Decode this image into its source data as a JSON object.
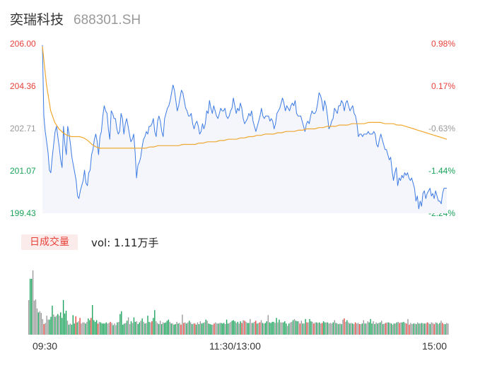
{
  "stock": {
    "name": "奕瑞科技",
    "code": "688301.SH"
  },
  "chart_data": [
    {
      "type": "line",
      "title": "",
      "yticks": [
        "206.00",
        "204.36",
        "202.71",
        "201.07",
        "199.43"
      ],
      "ylim": [
        199.43,
        206.0
      ],
      "pct_ticks": [
        "0.98%",
        "0.17%",
        "-0.63%",
        "-1.44%",
        "-2.24%"
      ],
      "x_labels": [
        "09:30",
        "11:30/13:00",
        "15:00"
      ],
      "grid": false,
      "series": [
        {
          "values": [
            205.95,
            203.2,
            202.6,
            202.2,
            201.8,
            201.1,
            201.0,
            201.6,
            202.1,
            202.6,
            202.8,
            202.4,
            202.0,
            201.5,
            201.2,
            202.8,
            202.1,
            201.7,
            202.8,
            202.5,
            202.1,
            201.6,
            201.3,
            201.0,
            200.7,
            200.1,
            200.0,
            200.3,
            200.5,
            200.7,
            201.1,
            200.6,
            200.5,
            201.0,
            201.1,
            201.7,
            201.9,
            202.3,
            202.5,
            202.2,
            201.7,
            202.4,
            202.6,
            203.2,
            203.6,
            203.4,
            203.3,
            202.7,
            202.3,
            203.4,
            203.3,
            203.1,
            203.1,
            202.7,
            202.5,
            202.6,
            203.3,
            203.1,
            202.5,
            202.9,
            203.1,
            202.8,
            202.5,
            202.2,
            202.3,
            202.5,
            201.8,
            200.8,
            201.3,
            201.4,
            201.6,
            202.0,
            202.3,
            202.4,
            202.6,
            202.5,
            202.8,
            202.8,
            202.9,
            203.1,
            202.6,
            202.4,
            203.0,
            203.2,
            203.0,
            202.6,
            202.4,
            203.1,
            203.3,
            203.5,
            203.6,
            203.8,
            204.1,
            204.4,
            204.2,
            203.8,
            203.4,
            203.6,
            203.9,
            204.2,
            204.1,
            203.8,
            203.5,
            203.4,
            203.2,
            203.2,
            203.3,
            202.9,
            202.7,
            202.9,
            203.0,
            202.8,
            202.5,
            202.6,
            202.9,
            202.7,
            202.9,
            203.4,
            203.3,
            203.8,
            203.5,
            203.3,
            203.6,
            203.4,
            203.2,
            203.1,
            203.3,
            203.5,
            203.4,
            203.4,
            203.5,
            203.2,
            203.1,
            203.2,
            203.4,
            203.5,
            203.9,
            203.6,
            203.3,
            203.5,
            203.4,
            203.7,
            203.5,
            203.1,
            202.9,
            203.0,
            203.1,
            203.3,
            203.2,
            203.4,
            203.0,
            202.8,
            202.6,
            202.8,
            203.0,
            203.2,
            203.5,
            203.2,
            203.1,
            203.2,
            203.2,
            203.2,
            203.0,
            203.1,
            203.0,
            202.7,
            202.9,
            203.3,
            203.4,
            203.5,
            203.7,
            203.9,
            203.7,
            203.4,
            203.6,
            203.5,
            203.4,
            203.6,
            203.7,
            203.6,
            203.8,
            203.3,
            203.2,
            203.2,
            203.2,
            203.0,
            202.8,
            202.6,
            202.9,
            203.0,
            202.9,
            203.2,
            203.4,
            203.3,
            203.3,
            203.4,
            203.7,
            204.1,
            204.0,
            203.8,
            203.4,
            203.8,
            203.6,
            203.2,
            202.7,
            202.8,
            203.0,
            203.1,
            203.5,
            203.4,
            203.3,
            203.6,
            203.6,
            203.8,
            203.7,
            203.4,
            203.7,
            203.8,
            203.6,
            203.4,
            203.5,
            203.6,
            203.3,
            203.2,
            202.9,
            202.4,
            202.5,
            202.5,
            202.4,
            202.5,
            202.5,
            202.5,
            202.6,
            202.5,
            202.5,
            202.5,
            202.6,
            202.5,
            202.1,
            202.0,
            202.3,
            202.5,
            202.3,
            202.1,
            201.9,
            201.9,
            201.7,
            201.5,
            201.6,
            201.1,
            200.7,
            201.0,
            201.2,
            200.5,
            200.8,
            200.7,
            200.9,
            200.8,
            201.0,
            200.9,
            201.0,
            200.8,
            200.7,
            200.8,
            200.6,
            200.4,
            199.9,
            200.1,
            199.6,
            199.9,
            199.7,
            200.2,
            200.3,
            200.0,
            200.2,
            200.3,
            200.4,
            200.1,
            200.2,
            200.0,
            200.3,
            200.1,
            199.9,
            199.9,
            199.8,
            200.2,
            200.4,
            200.4,
            200.4
          ],
          "color": "#3d7be3"
        },
        {
          "values": [
            205.9,
            204.4,
            203.4,
            202.95,
            202.7,
            202.55,
            202.45,
            202.4,
            202.4,
            202.4,
            202.35,
            202.25,
            202.1,
            202.0,
            201.95,
            201.95,
            201.95,
            201.95,
            201.95,
            201.95,
            201.95,
            201.95,
            201.95,
            201.95,
            201.95,
            201.95,
            202.0,
            202.0,
            202.05,
            202.05,
            202.05,
            202.05,
            202.05,
            202.05,
            202.1,
            202.1,
            202.1,
            202.1,
            202.15,
            202.15,
            202.2,
            202.2,
            202.2,
            202.25,
            202.25,
            202.3,
            202.3,
            202.3,
            202.35,
            202.35,
            202.4,
            202.4,
            202.45,
            202.45,
            202.5,
            202.5,
            202.5,
            202.55,
            202.55,
            202.6,
            202.6,
            202.6,
            202.65,
            202.65,
            202.7,
            202.7,
            202.7,
            202.75,
            202.75,
            202.8,
            202.8,
            202.8,
            202.85,
            202.85,
            202.85,
            202.9,
            202.9,
            202.9,
            202.9,
            202.95,
            202.95,
            202.95,
            202.95,
            202.9,
            202.9,
            202.9,
            202.85,
            202.85,
            202.8,
            202.75,
            202.7,
            202.65,
            202.6,
            202.55,
            202.5,
            202.45,
            202.4,
            202.35,
            202.3
          ],
          "color": "#f0a830"
        }
      ]
    },
    {
      "type": "bar",
      "title": "日成交量",
      "volume_text": "vol: 1.11万手",
      "colors": {
        "up": "#e8413a",
        "down": "#1aa25a",
        "flat": "#999999"
      },
      "values": [
        62,
        100,
        100,
        115,
        61,
        63,
        47,
        40,
        42,
        39,
        28,
        19,
        21,
        34,
        27,
        27,
        32,
        52,
        36,
        32,
        34,
        37,
        34,
        40,
        30,
        62,
        38,
        43,
        25,
        18,
        20,
        18,
        35,
        20,
        33,
        22,
        24,
        30,
        20,
        22,
        22,
        20,
        23,
        29,
        26,
        30,
        53,
        26,
        23,
        26,
        20,
        23,
        22,
        20,
        20,
        20,
        22,
        20,
        21,
        23,
        21,
        17,
        20,
        17,
        22,
        23,
        37,
        42,
        18,
        20,
        21,
        25,
        31,
        19,
        24,
        21,
        31,
        23,
        24,
        19,
        22,
        25,
        29,
        23,
        20,
        21,
        34,
        23,
        22,
        24,
        30,
        44,
        24,
        21,
        19,
        25,
        19,
        22,
        21,
        22,
        25,
        27,
        23,
        20,
        20,
        18,
        19,
        23,
        20,
        21,
        18,
        36,
        21,
        22,
        20,
        22,
        25,
        22,
        19,
        20,
        20,
        18,
        22,
        19,
        24,
        20,
        21,
        22,
        27,
        25,
        20,
        19,
        18,
        18,
        20,
        22,
        20,
        20,
        21,
        21,
        20,
        21,
        19,
        27,
        20,
        21,
        23,
        25,
        26,
        24,
        21,
        23,
        20,
        24,
        21,
        26,
        25,
        23,
        21,
        21,
        28,
        21,
        21,
        23,
        25,
        20,
        21,
        22,
        26,
        21,
        20,
        21,
        24,
        35,
        22,
        21,
        23,
        23,
        21,
        30,
        22,
        27,
        22,
        22,
        22,
        24,
        20,
        16,
        20,
        22,
        23,
        26,
        28,
        25,
        24,
        24,
        20,
        25,
        20,
        20,
        28,
        22,
        22,
        28,
        24,
        23,
        20,
        22,
        22,
        21,
        22,
        20,
        21,
        24,
        22,
        22,
        22,
        20,
        21,
        20,
        22,
        26,
        21,
        20,
        19,
        20,
        19,
        27,
        29,
        23,
        26,
        22,
        20,
        21,
        20,
        19,
        22,
        20,
        21,
        19,
        19,
        20,
        26,
        20,
        20,
        24,
        22,
        28,
        20,
        24,
        19,
        22,
        20,
        21,
        22,
        25,
        19,
        20,
        21,
        22,
        22,
        21,
        20,
        18,
        20,
        20,
        22,
        23,
        21,
        22,
        22,
        23,
        21,
        20,
        28,
        18,
        21,
        19,
        20,
        20,
        19,
        22,
        20,
        20,
        21,
        20,
        20,
        20,
        22,
        21,
        19,
        22,
        21,
        19,
        22,
        21,
        19,
        21,
        25,
        21,
        19,
        19,
        21,
        20
      ],
      "directions": "fddffffdfffufffdddfdfdfdddddfdfdddudfufffdfdduddddufdddddffufdffdfddddfdffdfddfddfdfdfddfuddffdfdfddddfdfddfdfufufdfdfdfudfdfddfdfdddfuffdfdddfddffdddfdfdufufddffdfudfufdfddfddddfdfdffdddfdffdfddfufdfdufddfufdfdfuddfdfffdfdfdfdfufdfdfdfuffufdfdffdddfdfdfdfdfufdfdfdfdfufddfufuffdfdfdfdfdfufdffufdfdfufdffdfdfufdf"
    }
  ]
}
